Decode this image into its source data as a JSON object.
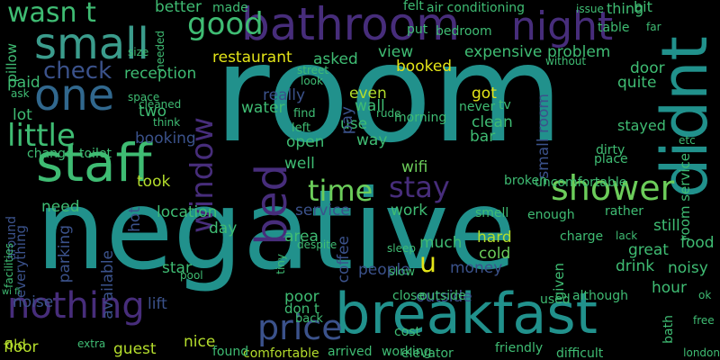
{
  "palette": {
    "background": "#000000",
    "teal": "#21918c",
    "green": "#3fbc73",
    "lime": "#b4dd2c",
    "yellow": "#e3e418",
    "blue": "#31688e",
    "indigo": "#3b528b",
    "purple": "#472d7b",
    "deep": "#440154"
  },
  "words": [
    {
      "text": "room",
      "color": "#21918c"
    },
    {
      "text": "negative",
      "color": "#21918c"
    },
    {
      "text": "breakfast",
      "color": "#21918c"
    },
    {
      "text": "bathroom",
      "color": "#472d7b"
    },
    {
      "text": "staff",
      "color": "#3fbc73"
    },
    {
      "text": "small",
      "color": "#3b9c8c"
    },
    {
      "text": "night",
      "color": "#472d7b"
    },
    {
      "text": "one",
      "color": "#31688e"
    },
    {
      "text": "didnt",
      "color": "#21918c"
    },
    {
      "text": "bed",
      "color": "#472d7b"
    },
    {
      "text": "nothing",
      "color": "#472d7b"
    },
    {
      "text": "price",
      "color": "#3b528b"
    },
    {
      "text": "shower",
      "color": "#6ccd5a"
    },
    {
      "text": "good",
      "color": "#3fbc73"
    },
    {
      "text": "check",
      "color": "#3b528b"
    },
    {
      "text": "little",
      "color": "#3fbc73"
    },
    {
      "text": "stay",
      "color": "#472d7b"
    },
    {
      "text": "time",
      "color": "#6ccd5a"
    },
    {
      "text": "window",
      "color": "#472d7b"
    },
    {
      "text": "wasn t",
      "color": "#3fbc73"
    },
    {
      "text": "u",
      "color": "#e3e418"
    },
    {
      "text": "restaurant",
      "color": "#e3e418"
    },
    {
      "text": "reception",
      "color": "#3fbc73"
    },
    {
      "text": "noisy",
      "color": "#3fbc73"
    },
    {
      "text": "location",
      "color": "#3fbc73"
    },
    {
      "text": "service",
      "color": "#3b528b"
    },
    {
      "text": "coffee",
      "color": "#3b528b"
    },
    {
      "text": "expensive",
      "color": "#3fbc73"
    },
    {
      "text": "booked",
      "color": "#e3e418"
    },
    {
      "text": "problem",
      "color": "#3fbc73"
    },
    {
      "text": "clean",
      "color": "#3fbc73"
    },
    {
      "text": "people",
      "color": "#3b528b"
    },
    {
      "text": "small room",
      "color": "#3b528b"
    },
    {
      "text": "hard",
      "color": "#b4dd2c"
    },
    {
      "text": "cold",
      "color": "#6ccd5a"
    },
    {
      "text": "money",
      "color": "#3b528b"
    },
    {
      "text": "outside",
      "color": "#3b528b"
    },
    {
      "text": "floor",
      "color": "#b4dd2c"
    },
    {
      "text": "guest",
      "color": "#b4dd2c"
    },
    {
      "text": "nice",
      "color": "#b4dd2c"
    },
    {
      "text": "lift",
      "color": "#3b528b"
    },
    {
      "text": "poor",
      "color": "#3fbc73"
    },
    {
      "text": "star",
      "color": "#3fbc73"
    },
    {
      "text": "took",
      "color": "#b4dd2c"
    },
    {
      "text": "booking",
      "color": "#3b528b"
    },
    {
      "text": "two",
      "color": "#3fbc73"
    },
    {
      "text": "wifi",
      "color": "#6ccd5a"
    },
    {
      "text": "got",
      "color": "#e3e418"
    },
    {
      "text": "use",
      "color": "#3fbc73"
    },
    {
      "text": "way",
      "color": "#3fbc73"
    },
    {
      "text": "bar",
      "color": "#3fbc73"
    },
    {
      "text": "well",
      "color": "#3fbc73"
    },
    {
      "text": "even",
      "color": "#b4dd2c"
    },
    {
      "text": "really",
      "color": "#3b528b"
    },
    {
      "text": "water",
      "color": "#3fbc73"
    },
    {
      "text": "open",
      "color": "#3fbc73"
    },
    {
      "text": "asked",
      "color": "#3fbc73"
    },
    {
      "text": "view",
      "color": "#3fbc73"
    },
    {
      "text": "wall",
      "color": "#3fbc73"
    },
    {
      "text": "pay",
      "color": "#3b528b"
    },
    {
      "text": "better",
      "color": "#3fbc73"
    },
    {
      "text": "made",
      "color": "#3fbc73"
    },
    {
      "text": "felt",
      "color": "#3fbc73"
    },
    {
      "text": "bit",
      "color": "#3fbc73"
    },
    {
      "text": "thing",
      "color": "#3fbc73"
    },
    {
      "text": "air conditioning",
      "color": "#3fbc73"
    },
    {
      "text": "table",
      "color": "#3fbc73"
    },
    {
      "text": "door",
      "color": "#3fbc73"
    },
    {
      "text": "quite",
      "color": "#3fbc73"
    },
    {
      "text": "paid",
      "color": "#3fbc73"
    },
    {
      "text": "lot",
      "color": "#3fbc73"
    },
    {
      "text": "need",
      "color": "#3fbc73"
    },
    {
      "text": "day",
      "color": "#3fbc73"
    },
    {
      "text": "area",
      "color": "#3fbc73"
    },
    {
      "text": "much",
      "color": "#3fbc73"
    },
    {
      "text": "work",
      "color": "#3fbc73"
    },
    {
      "text": "drink",
      "color": "#3fbc73"
    },
    {
      "text": "great",
      "color": "#3fbc73"
    },
    {
      "text": "food",
      "color": "#3fbc73"
    },
    {
      "text": "still",
      "color": "#3fbc73"
    },
    {
      "text": "hour",
      "color": "#3fbc73"
    },
    {
      "text": "old",
      "color": "#b4dd2c"
    },
    {
      "text": "noise",
      "color": "#3b528b"
    },
    {
      "text": "around",
      "color": "#3b528b"
    },
    {
      "text": "everything",
      "color": "#3b528b"
    },
    {
      "text": "parking",
      "color": "#3b528b"
    },
    {
      "text": "available",
      "color": "#3b528b"
    },
    {
      "text": "hot",
      "color": "#3b528b"
    },
    {
      "text": "pillow",
      "color": "#3fbc73"
    },
    {
      "text": "toilet",
      "color": "#3fbc73"
    },
    {
      "text": "change",
      "color": "#3fbc73"
    },
    {
      "text": "ask",
      "color": "#3fbc73"
    },
    {
      "text": "don t",
      "color": "#3fbc73"
    },
    {
      "text": "back",
      "color": "#3fbc73"
    },
    {
      "text": "comfortable",
      "color": "#b4dd2c"
    },
    {
      "text": "found",
      "color": "#3fbc73"
    },
    {
      "text": "elevator",
      "color": "#3fbc73"
    },
    {
      "text": "arrived",
      "color": "#3fbc73"
    },
    {
      "text": "working",
      "color": "#3fbc73"
    },
    {
      "text": "friendly",
      "color": "#3fbc73"
    },
    {
      "text": "difficult",
      "color": "#3fbc73"
    },
    {
      "text": "used",
      "color": "#3fbc73"
    },
    {
      "text": "although",
      "color": "#3fbc73"
    },
    {
      "text": "close",
      "color": "#3fbc73"
    },
    {
      "text": "cost",
      "color": "#3fbc73"
    },
    {
      "text": "smell",
      "color": "#3fbc73"
    },
    {
      "text": "enough",
      "color": "#3fbc73"
    },
    {
      "text": "charge",
      "color": "#3fbc73"
    },
    {
      "text": "rather",
      "color": "#3fbc73"
    },
    {
      "text": "broken",
      "color": "#3fbc73"
    },
    {
      "text": "uncomfortable",
      "color": "#3fbc73"
    },
    {
      "text": "stayed",
      "color": "#3fbc73"
    },
    {
      "text": "place",
      "color": "#3fbc73"
    },
    {
      "text": "dirty",
      "color": "#3fbc73"
    },
    {
      "text": "morning",
      "color": "#3fbc73"
    },
    {
      "text": "never",
      "color": "#3fbc73"
    },
    {
      "text": "tv",
      "color": "#3fbc73"
    },
    {
      "text": "find",
      "color": "#3fbc73"
    },
    {
      "text": "left",
      "color": "#3fbc73"
    },
    {
      "text": "bedroom",
      "color": "#3fbc73"
    },
    {
      "text": "put",
      "color": "#3fbc73"
    },
    {
      "text": "issue",
      "color": "#3fbc73"
    },
    {
      "text": "far",
      "color": "#3fbc73"
    },
    {
      "text": "without",
      "color": "#3fbc73"
    },
    {
      "text": "street",
      "color": "#3fbc73"
    },
    {
      "text": "look",
      "color": "#3fbc73"
    },
    {
      "text": "think",
      "color": "#3fbc73"
    },
    {
      "text": "space",
      "color": "#3fbc73"
    },
    {
      "text": "cleaned",
      "color": "#3fbc73"
    },
    {
      "text": "room service",
      "color": "#3fbc73"
    },
    {
      "text": "bath",
      "color": "#3fbc73"
    },
    {
      "text": "etc",
      "color": "#3fbc73"
    },
    {
      "text": "lack",
      "color": "#3fbc73"
    },
    {
      "text": "free",
      "color": "#3fbc73"
    },
    {
      "text": "ok",
      "color": "#3fbc73"
    },
    {
      "text": "london",
      "color": "#3fbc73"
    },
    {
      "text": "slow",
      "color": "#3fbc73"
    },
    {
      "text": "sleep",
      "color": "#3fbc73"
    },
    {
      "text": "given",
      "color": "#3fbc73"
    },
    {
      "text": "extra",
      "color": "#3fbc73"
    },
    {
      "text": "pool",
      "color": "#3fbc73"
    },
    {
      "text": "rude",
      "color": "#3fbc73"
    },
    {
      "text": "needed",
      "color": "#3fbc73"
    },
    {
      "text": "size",
      "color": "#3fbc73"
    },
    {
      "text": "wi fi",
      "color": "#3fbc73"
    },
    {
      "text": "facilities",
      "color": "#3fbc73"
    },
    {
      "text": "tiny",
      "color": "#3fbc73"
    },
    {
      "text": "despite",
      "color": "#3fbc73"
    },
    {
      "text": "outside",
      "color": "#3fbc73"
    }
  ]
}
